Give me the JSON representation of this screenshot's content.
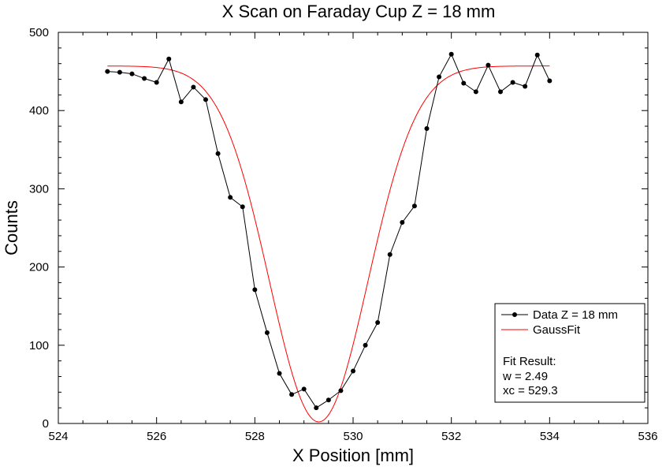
{
  "chart_data": {
    "type": "line",
    "title": "X Scan on Faraday Cup Z = 18 mm",
    "xlabel": "X Position [mm]",
    "ylabel": "Counts",
    "xlim": [
      524,
      536
    ],
    "ylim": [
      0,
      500
    ],
    "x_ticks": [
      524,
      526,
      528,
      530,
      532,
      534,
      536
    ],
    "y_ticks": [
      0,
      100,
      200,
      300,
      400,
      500
    ],
    "grid": false,
    "legend_position": "bottom-right",
    "series": [
      {
        "name": "Data Z = 18 mm",
        "color": "#000000",
        "marker": "circle",
        "x": [
          525.0,
          525.25,
          525.5,
          525.75,
          526.0,
          526.25,
          526.5,
          526.75,
          527.0,
          527.25,
          527.5,
          527.75,
          528.0,
          528.25,
          528.5,
          528.75,
          529.0,
          529.25,
          529.5,
          529.75,
          530.0,
          530.25,
          530.5,
          530.75,
          531.0,
          531.25,
          531.5,
          531.75,
          532.0,
          532.25,
          532.5,
          532.75,
          533.0,
          533.25,
          533.5,
          533.75,
          534.0
        ],
        "y": [
          450,
          449,
          447,
          441,
          436,
          466,
          411,
          430,
          414,
          345,
          289,
          277,
          171,
          116,
          64,
          37,
          44,
          20,
          30,
          42,
          67,
          100,
          129,
          216,
          257,
          278,
          377,
          443,
          472,
          435,
          424,
          458,
          424,
          436,
          431,
          471,
          438
        ]
      },
      {
        "name": "GaussFit",
        "color": "#ff0000",
        "marker": "none",
        "fit": {
          "baseline": 457,
          "depth": 455,
          "center": 529.3,
          "sigma": 1.0
        }
      }
    ],
    "annotation": {
      "heading": "Fit Result:",
      "lines": [
        "w = 2.49",
        "xc = 529.3"
      ]
    }
  }
}
